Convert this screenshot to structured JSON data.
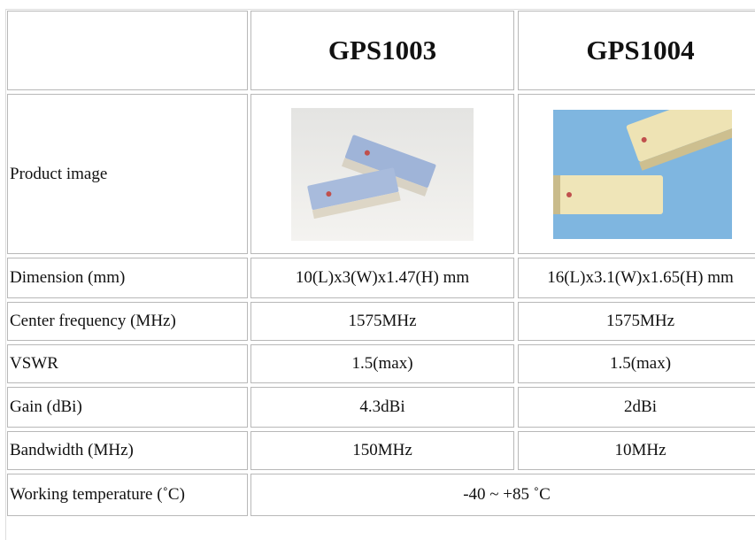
{
  "table": {
    "columns": [
      "GPS1003",
      "GPS1004"
    ],
    "image_row": {
      "label": "Product image"
    },
    "rows": [
      [
        "Dimension (mm)",
        "10(L)x3(W)x1.47(H) mm",
        "16(L)x3.1(W)x1.65(H) mm"
      ],
      [
        "Center frequency (MHz)",
        "1575MHz",
        "1575MHz"
      ],
      [
        "VSWR",
        "1.5(max)",
        "1.5(max)"
      ],
      [
        "Gain (dBi)",
        "4.3dBi",
        "2dBi"
      ],
      [
        "Bandwidth (MHz)",
        "150MHz",
        "10MHz"
      ],
      [
        "Working temperature (˚C)",
        "-40 ~ +85 ˚C"
      ]
    ]
  }
}
